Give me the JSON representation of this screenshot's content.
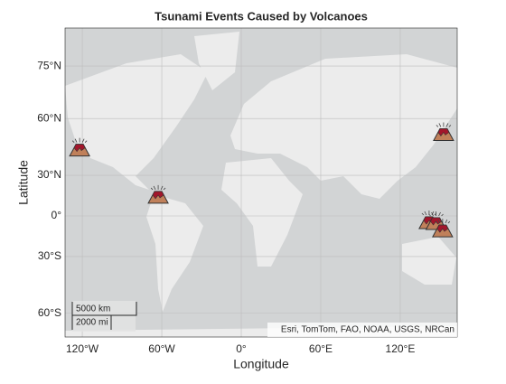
{
  "chart_data": {
    "type": "scatter",
    "title": "Tsunami Events Caused by Volcanoes",
    "x_label": "Longitude",
    "y_label": "Latitude",
    "x": [
      -122,
      -62.7,
      152.7,
      141.8,
      147,
      152
    ],
    "values": [
      45.6,
      14.6,
      53.4,
      -4.9,
      -5.6,
      -11.2
    ],
    "color": "#c0805a",
    "xlim": [
      -133,
      163
    ],
    "ylim": [
      -68,
      81
    ],
    "xticks": [
      {
        "value": -120,
        "label": "120°W"
      },
      {
        "value": -60,
        "label": "60°W"
      },
      {
        "value": 0,
        "label": "0°"
      },
      {
        "value": 60,
        "label": "60°E"
      },
      {
        "value": 120,
        "label": "120°E"
      }
    ],
    "yticks": [
      {
        "value": -60,
        "label": "60°S"
      },
      {
        "value": -30,
        "label": "30°S"
      },
      {
        "value": 0,
        "label": "0°"
      },
      {
        "value": 30,
        "label": "30°N"
      },
      {
        "value": 60,
        "label": "60°N"
      },
      {
        "value": 75,
        "label": "75°N"
      }
    ],
    "grid": true,
    "projection": "mercator",
    "scale_bar": [
      "5000 km",
      "2000 mi"
    ],
    "attribution": "Esri, TomTom, FAO, NOAA, USGS, NRCan"
  }
}
